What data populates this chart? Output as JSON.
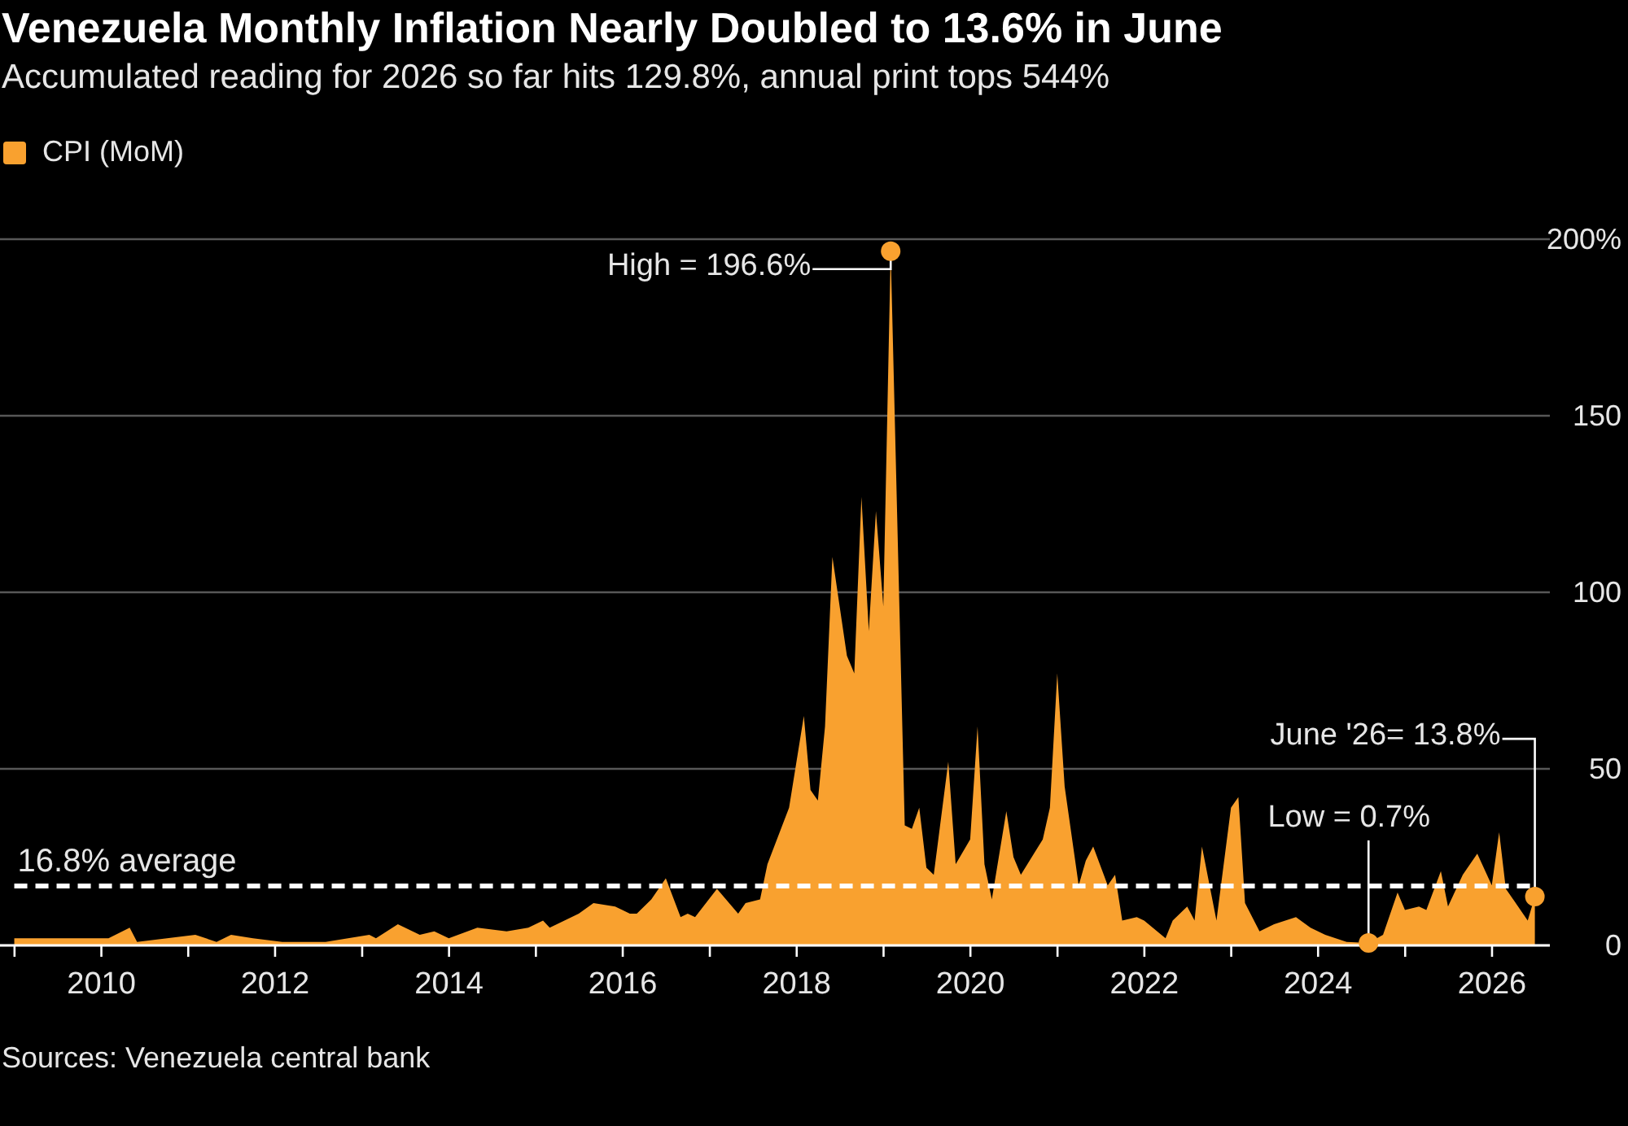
{
  "chart_data": {
    "type": "area",
    "title": "Venezuela Monthly Inflation Nearly Doubled to 13.6% in June",
    "subtitle": "Accumulated reading for 2026 so far hits 129.8%, annual print tops 544%",
    "x": [
      "2008-12-31",
      "2009-01-31",
      "2009-06-30",
      "2009-10-31",
      "2010-01-31",
      "2010-04-30",
      "2010-05-31",
      "2011-01-31",
      "2011-04-30",
      "2011-06-30",
      "2011-09-30",
      "2012-01-31",
      "2012-07-31",
      "2013-01-31",
      "2013-02-28",
      "2013-05-31",
      "2013-08-31",
      "2013-10-31",
      "2013-12-31",
      "2014-04-30",
      "2014-08-31",
      "2014-11-30",
      "2015-01-31",
      "2015-02-28",
      "2015-06-30",
      "2015-08-31",
      "2015-11-30",
      "2016-01-31",
      "2016-02-29",
      "2016-04-30",
      "2016-06-30",
      "2016-08-31",
      "2016-09-30",
      "2016-10-31",
      "2017-01-31",
      "2017-04-30",
      "2017-05-31",
      "2017-07-31",
      "2017-08-31",
      "2017-11-30",
      "2018-01-31",
      "2018-02-28",
      "2018-03-31",
      "2018-04-30",
      "2018-05-31",
      "2018-07-31",
      "2018-08-31",
      "2018-09-30",
      "2018-10-31",
      "2018-11-30",
      "2018-12-31",
      "2019-01-31",
      "2019-03-31",
      "2019-04-30",
      "2019-05-31",
      "2019-06-30",
      "2019-07-31",
      "2019-09-30",
      "2019-10-31",
      "2019-12-31",
      "2020-01-31",
      "2020-02-29",
      "2020-03-31",
      "2020-05-31",
      "2020-06-30",
      "2020-07-31",
      "2020-10-31",
      "2020-11-30",
      "2020-12-31",
      "2021-01-31",
      "2021-03-31",
      "2021-04-30",
      "2021-05-31",
      "2021-07-31",
      "2021-08-31",
      "2021-09-30",
      "2021-11-30",
      "2021-12-31",
      "2022-03-31",
      "2022-04-30",
      "2022-06-30",
      "2022-07-31",
      "2022-08-31",
      "2022-10-31",
      "2022-12-31",
      "2023-01-31",
      "2023-02-28",
      "2023-04-30",
      "2023-06-30",
      "2023-09-30",
      "2023-11-30",
      "2024-01-31",
      "2024-04-30",
      "2024-07-31",
      "2024-09-30",
      "2024-11-30",
      "2024-12-31",
      "2025-02-28",
      "2025-03-31",
      "2025-05-31",
      "2025-06-30",
      "2025-08-31",
      "2025-10-31",
      "2025-12-31",
      "2026-01-31",
      "2026-02-28",
      "2026-03-31",
      "2026-05-31",
      "2026-06-30"
    ],
    "series": [
      {
        "name": "CPI (MoM)",
        "color": "#f9a12f",
        "values": [
          2,
          2,
          2,
          2,
          2,
          5,
          1,
          3,
          1,
          3,
          2,
          1,
          1,
          3,
          2,
          6,
          3,
          4,
          2,
          5,
          4,
          5,
          7,
          5,
          9,
          12,
          11,
          9,
          9,
          13,
          19,
          8,
          9,
          8,
          16,
          9,
          12,
          13,
          23,
          39,
          65,
          44,
          41,
          62,
          110,
          82,
          77,
          127,
          89,
          123,
          96,
          196.6,
          34,
          33,
          39,
          22,
          20,
          52,
          23,
          30,
          62,
          23,
          13,
          38,
          25,
          20,
          30,
          39,
          77,
          45,
          17,
          24,
          28,
          17,
          20,
          7,
          8,
          7,
          2,
          7,
          11,
          7,
          28,
          7,
          39,
          42,
          12,
          4,
          6,
          8,
          5,
          3,
          1,
          0.7,
          3,
          15,
          10,
          11,
          10,
          21,
          11,
          20,
          26,
          17,
          32,
          16,
          13,
          7,
          13.8
        ]
      }
    ],
    "xlim": [
      "2008-11",
      "2026-09"
    ],
    "xticks": [
      {
        "value": "2009",
        "label": null
      },
      "2010",
      {
        "value": "2011",
        "label": null
      },
      "2012",
      {
        "value": "2013",
        "label": null
      },
      "2014",
      {
        "value": "2015",
        "label": null
      },
      "2016",
      {
        "value": "2017",
        "label": null
      },
      "2018",
      {
        "value": "2019",
        "label": null
      },
      "2020",
      {
        "value": "2021",
        "label": null
      },
      "2022",
      {
        "value": "2023",
        "label": null
      },
      "2024",
      {
        "value": "2025",
        "label": null
      },
      "2026"
    ],
    "ylim": [
      0,
      200
    ],
    "yticks": [
      0,
      50,
      100,
      150,
      {
        "value": 200,
        "label": "200%"
      }
    ],
    "grid": "y",
    "legend": "top left",
    "ref_lines": [
      {
        "axis": "y",
        "value": 16.8,
        "label": "16.8% average",
        "color": "#ffffff",
        "line_style": "dashed"
      }
    ],
    "annotations": [
      {
        "text": "High = 196.6%",
        "x": "2019-01-31",
        "y": 196.6
      },
      {
        "text": "Low = 0.7%",
        "x": "2024-07-31",
        "y": 0.7
      },
      {
        "text": "June '26= 13.8%",
        "x": "2026-06-30",
        "y": 13.8
      },
      "Sources: Venezuela central bank"
    ]
  }
}
